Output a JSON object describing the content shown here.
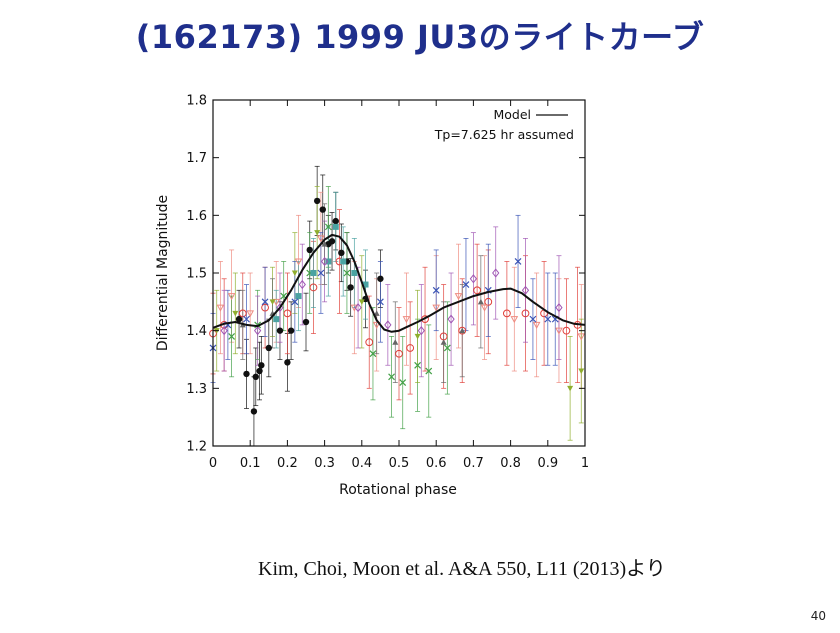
{
  "slide": {
    "title": "(162173) 1999 JU3のライトカーブ",
    "citation": "Kim, Choi, Moon et al. A&A 550, L11 (2013)より",
    "page_number": "40"
  },
  "chart_data": {
    "type": "scatter",
    "xlabel": "Rotational phase",
    "ylabel": "Differential Magnitude",
    "xlim": [
      0,
      1
    ],
    "ylim": [
      1.2,
      1.8
    ],
    "xticks": [
      0,
      0.1,
      0.2,
      0.3,
      0.4,
      0.5,
      0.6,
      0.7,
      0.8,
      0.9,
      1
    ],
    "xtick_labels": [
      "0",
      "0.1",
      "0.2",
      "0.3",
      "0.4",
      "0.5",
      "0.6",
      "0.7",
      "0.8",
      "0.9",
      "1"
    ],
    "yticks": [
      1.2,
      1.3,
      1.4,
      1.5,
      1.6,
      1.7,
      1.8
    ],
    "ytick_labels": [
      "1.2",
      "1.3",
      "1.4",
      "1.5",
      "1.6",
      "1.7",
      "1.8"
    ],
    "grid": false,
    "legend_position": "top-right",
    "legend": {
      "model_label": "Model",
      "period_note": "Tp=7.625 hr assumed"
    },
    "colors": {
      "black": "#111111",
      "red": "#e0403a",
      "salmon": "#ee8b80",
      "green": "#43a047",
      "olive": "#8fae2e",
      "teal": "#4aa3a2",
      "blue": "#3a54b6",
      "purple": "#a056b4",
      "gray": "#666666"
    },
    "model": {
      "name": "Model",
      "x": [
        0,
        0.03,
        0.06,
        0.09,
        0.12,
        0.15,
        0.18,
        0.21,
        0.24,
        0.27,
        0.3,
        0.32,
        0.34,
        0.36,
        0.38,
        0.4,
        0.42,
        0.44,
        0.46,
        0.48,
        0.5,
        0.52,
        0.55,
        0.58,
        0.62,
        0.66,
        0.7,
        0.74,
        0.78,
        0.8,
        0.83,
        0.86,
        0.9,
        0.94,
        0.97,
        1.0
      ],
      "y": [
        1.405,
        1.412,
        1.415,
        1.41,
        1.408,
        1.418,
        1.44,
        1.47,
        1.505,
        1.535,
        1.558,
        1.566,
        1.563,
        1.548,
        1.52,
        1.484,
        1.447,
        1.418,
        1.402,
        1.398,
        1.4,
        1.406,
        1.415,
        1.425,
        1.44,
        1.45,
        1.46,
        1.467,
        1.472,
        1.473,
        1.465,
        1.45,
        1.432,
        1.418,
        1.412,
        1.41
      ]
    },
    "series": [
      {
        "marker": "filled-circle",
        "color": "black",
        "points": [
          [
            0.07,
            1.42,
            0.05
          ],
          [
            0.09,
            1.325,
            0.06
          ],
          [
            0.11,
            1.26,
            0.06
          ],
          [
            0.115,
            1.32,
            0.05
          ],
          [
            0.125,
            1.33,
            0.05
          ],
          [
            0.13,
            1.34,
            0.05
          ],
          [
            0.15,
            1.37,
            0.05
          ],
          [
            0.18,
            1.4,
            0.05
          ],
          [
            0.2,
            1.345,
            0.05
          ],
          [
            0.21,
            1.4,
            0.05
          ],
          [
            0.25,
            1.415,
            0.05
          ],
          [
            0.26,
            1.54,
            0.05
          ],
          [
            0.28,
            1.625,
            0.06
          ],
          [
            0.295,
            1.61,
            0.06
          ],
          [
            0.31,
            1.55,
            0.05
          ],
          [
            0.32,
            1.555,
            0.05
          ],
          [
            0.33,
            1.59,
            0.05
          ],
          [
            0.345,
            1.535,
            0.05
          ],
          [
            0.36,
            1.52,
            0.05
          ],
          [
            0.37,
            1.475,
            0.05
          ],
          [
            0.41,
            1.455,
            0.05
          ],
          [
            0.45,
            1.49,
            0.05
          ]
        ]
      },
      {
        "marker": "open-circle",
        "color": "red",
        "points": [
          [
            0.0,
            1.395,
            0.07
          ],
          [
            0.03,
            1.41,
            0.08
          ],
          [
            0.08,
            1.43,
            0.07
          ],
          [
            0.14,
            1.44,
            0.07
          ],
          [
            0.2,
            1.43,
            0.07
          ],
          [
            0.27,
            1.475,
            0.08
          ],
          [
            0.34,
            1.52,
            0.09
          ],
          [
            0.42,
            1.38,
            0.08
          ],
          [
            0.5,
            1.36,
            0.08
          ],
          [
            0.53,
            1.37,
            0.08
          ],
          [
            0.57,
            1.42,
            0.09
          ],
          [
            0.62,
            1.39,
            0.09
          ],
          [
            0.67,
            1.4,
            0.09
          ],
          [
            0.71,
            1.47,
            0.08
          ],
          [
            0.74,
            1.45,
            0.09
          ],
          [
            0.79,
            1.43,
            0.09
          ],
          [
            0.84,
            1.43,
            0.1
          ],
          [
            0.89,
            1.43,
            0.09
          ],
          [
            0.95,
            1.4,
            0.09
          ],
          [
            0.98,
            1.41,
            0.1
          ]
        ]
      },
      {
        "marker": "open-triangle-down",
        "color": "salmon",
        "points": [
          [
            0.02,
            1.44,
            0.08
          ],
          [
            0.05,
            1.46,
            0.08
          ],
          [
            0.1,
            1.43,
            0.07
          ],
          [
            0.17,
            1.45,
            0.07
          ],
          [
            0.23,
            1.52,
            0.08
          ],
          [
            0.29,
            1.56,
            0.08
          ],
          [
            0.38,
            1.44,
            0.08
          ],
          [
            0.44,
            1.41,
            0.08
          ],
          [
            0.52,
            1.42,
            0.08
          ],
          [
            0.6,
            1.44,
            0.09
          ],
          [
            0.66,
            1.46,
            0.09
          ],
          [
            0.73,
            1.44,
            0.09
          ],
          [
            0.81,
            1.42,
            0.09
          ],
          [
            0.87,
            1.41,
            0.09
          ],
          [
            0.93,
            1.4,
            0.09
          ],
          [
            0.99,
            1.39,
            0.09
          ]
        ]
      },
      {
        "marker": "x",
        "color": "green",
        "points": [
          [
            0.05,
            1.39,
            0.07
          ],
          [
            0.12,
            1.41,
            0.06
          ],
          [
            0.19,
            1.46,
            0.06
          ],
          [
            0.26,
            1.5,
            0.07
          ],
          [
            0.31,
            1.58,
            0.07
          ],
          [
            0.36,
            1.5,
            0.07
          ],
          [
            0.43,
            1.36,
            0.08
          ],
          [
            0.48,
            1.32,
            0.07
          ],
          [
            0.51,
            1.31,
            0.08
          ],
          [
            0.55,
            1.34,
            0.08
          ],
          [
            0.58,
            1.33,
            0.08
          ],
          [
            0.63,
            1.37,
            0.08
          ]
        ]
      },
      {
        "marker": "filled-triangle-down",
        "color": "olive",
        "points": [
          [
            0.01,
            1.4,
            0.07
          ],
          [
            0.06,
            1.43,
            0.07
          ],
          [
            0.16,
            1.45,
            0.06
          ],
          [
            0.22,
            1.5,
            0.07
          ],
          [
            0.28,
            1.57,
            0.08
          ],
          [
            0.4,
            1.45,
            0.08
          ],
          [
            0.55,
            1.39,
            0.08
          ],
          [
            0.96,
            1.3,
            0.09
          ],
          [
            0.99,
            1.33,
            0.09
          ]
        ]
      },
      {
        "marker": "filled-square",
        "color": "teal",
        "points": [
          [
            0.17,
            1.42,
            0.05
          ],
          [
            0.23,
            1.46,
            0.06
          ],
          [
            0.27,
            1.5,
            0.06
          ],
          [
            0.31,
            1.52,
            0.06
          ],
          [
            0.33,
            1.58,
            0.06
          ],
          [
            0.35,
            1.52,
            0.06
          ],
          [
            0.38,
            1.5,
            0.06
          ],
          [
            0.41,
            1.48,
            0.06
          ]
        ]
      },
      {
        "marker": "x",
        "color": "blue",
        "points": [
          [
            0.0,
            1.37,
            0.06
          ],
          [
            0.04,
            1.41,
            0.06
          ],
          [
            0.09,
            1.42,
            0.06
          ],
          [
            0.14,
            1.45,
            0.06
          ],
          [
            0.22,
            1.45,
            0.07
          ],
          [
            0.29,
            1.5,
            0.07
          ],
          [
            0.45,
            1.45,
            0.07
          ],
          [
            0.6,
            1.47,
            0.07
          ],
          [
            0.68,
            1.48,
            0.08
          ],
          [
            0.74,
            1.47,
            0.08
          ],
          [
            0.82,
            1.52,
            0.08
          ],
          [
            0.86,
            1.42,
            0.07
          ],
          [
            0.9,
            1.42,
            0.08
          ],
          [
            0.92,
            1.42,
            0.08
          ]
        ]
      },
      {
        "marker": "open-diamond",
        "color": "purple",
        "points": [
          [
            0.03,
            1.4,
            0.07
          ],
          [
            0.12,
            1.4,
            0.06
          ],
          [
            0.18,
            1.44,
            0.06
          ],
          [
            0.24,
            1.48,
            0.07
          ],
          [
            0.3,
            1.52,
            0.07
          ],
          [
            0.39,
            1.44,
            0.07
          ],
          [
            0.47,
            1.41,
            0.07
          ],
          [
            0.56,
            1.4,
            0.08
          ],
          [
            0.64,
            1.42,
            0.08
          ],
          [
            0.7,
            1.49,
            0.08
          ],
          [
            0.76,
            1.5,
            0.08
          ],
          [
            0.84,
            1.47,
            0.09
          ],
          [
            0.93,
            1.44,
            0.09
          ]
        ]
      },
      {
        "marker": "filled-triangle-up",
        "color": "gray",
        "points": [
          [
            0.08,
            1.41,
            0.06
          ],
          [
            0.16,
            1.43,
            0.06
          ],
          [
            0.3,
            1.55,
            0.07
          ],
          [
            0.44,
            1.43,
            0.07
          ],
          [
            0.49,
            1.38,
            0.07
          ],
          [
            0.62,
            1.38,
            0.07
          ],
          [
            0.67,
            1.4,
            0.08
          ],
          [
            0.72,
            1.45,
            0.08
          ]
        ]
      }
    ]
  }
}
